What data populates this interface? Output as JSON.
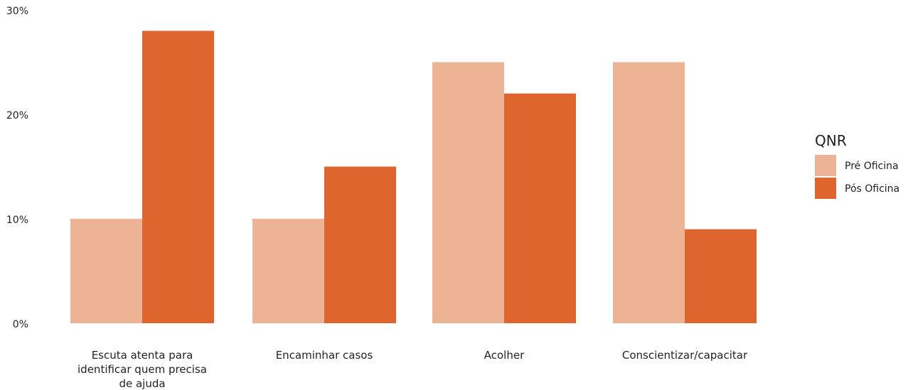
{
  "chart_data": {
    "type": "bar",
    "title": "",
    "xlabel": "",
    "ylabel": "",
    "ylim": [
      0,
      30
    ],
    "y_ticks": [
      0,
      10,
      20,
      30
    ],
    "y_tick_labels": [
      "0%",
      "10%",
      "20%",
      "30%"
    ],
    "grid": false,
    "legend_title": "QNR",
    "legend_position": "right",
    "categories": [
      "Escuta atenta para identificar quem precisa de ajuda",
      "Encaminhar casos",
      "Acolher",
      "Conscientizar/capacitar"
    ],
    "series": [
      {
        "name": "Pré Oficina",
        "color": "#EDB395",
        "values": [
          10,
          10,
          25,
          25
        ]
      },
      {
        "name": "Pós Oficina",
        "color": "#DE652E",
        "values": [
          28,
          15,
          22,
          9
        ]
      }
    ]
  }
}
